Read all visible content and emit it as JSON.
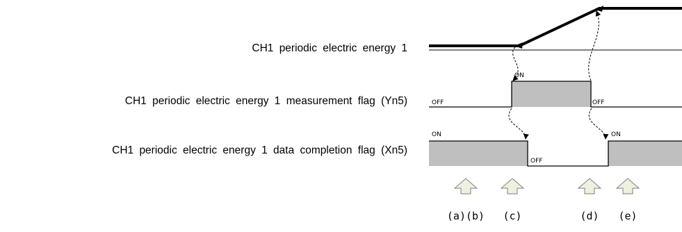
{
  "signals": [
    {
      "label": "CH1 periodic electric energy 1"
    },
    {
      "label": "CH1 periodic electric energy 1 measurement flag (Yn5)",
      "off_start": "OFF",
      "on": "ON",
      "off_end": "OFF"
    },
    {
      "label": "CH1 periodic electric energy 1 data completion flag (Xn5)",
      "on_start": "ON",
      "off": "OFF",
      "on_end": "ON"
    }
  ],
  "markers": [
    "(a)(b)",
    "(c)",
    "(d)",
    "(e)"
  ],
  "colors": {
    "fill": "#bfbfbf",
    "arrow_fill": "#eef0e0",
    "arrow_stroke": "#7f7f7f",
    "line": "#000000"
  }
}
